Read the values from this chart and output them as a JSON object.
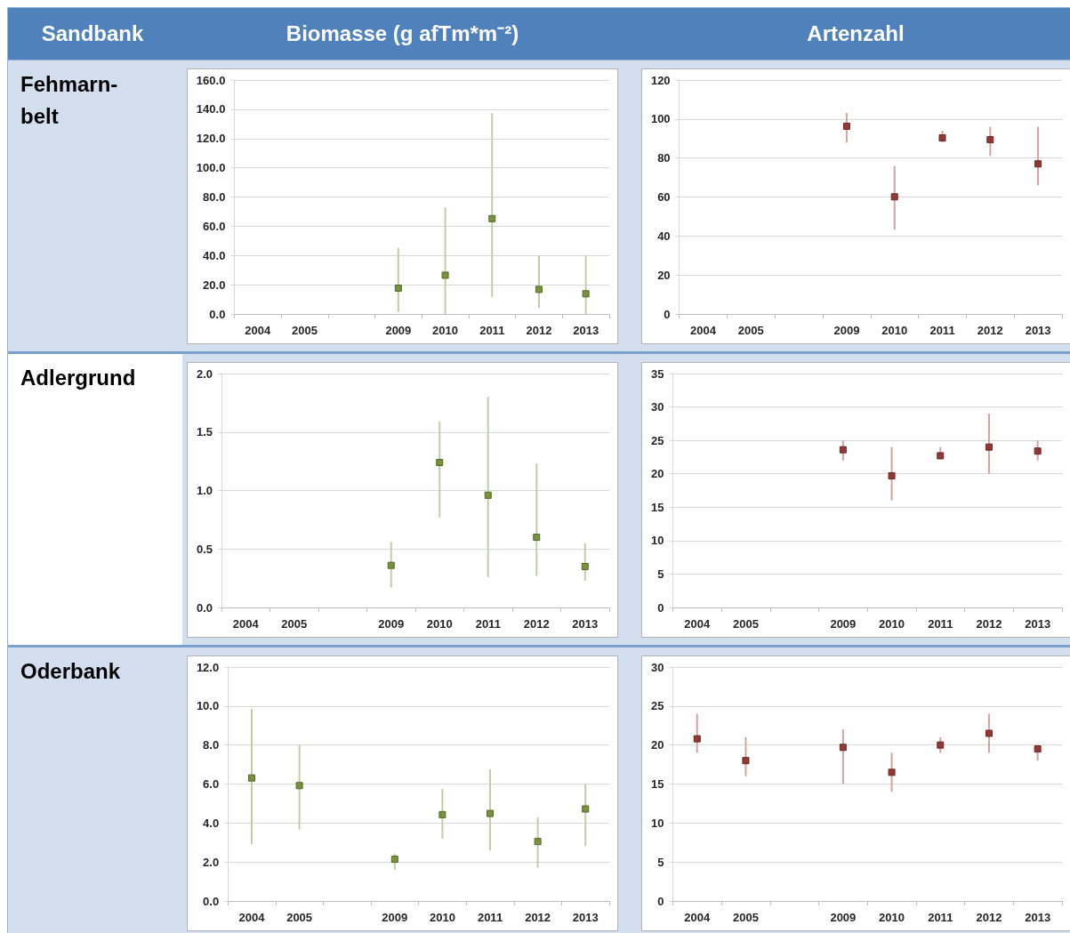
{
  "chart_data": [
    {
      "type": "other",
      "title": "Sandbank",
      "annotations": [
        "Fehmarn-belt",
        "Adlergrund",
        "Oderbank"
      ]
    },
    {
      "type": "scatter",
      "title": "Biomasse (g afTm*m⁻²)",
      "categories": [
        "2004",
        "2005",
        null,
        "2009",
        "2010",
        "2011",
        "2012",
        "2013"
      ],
      "values": [
        null,
        null,
        null,
        17.6,
        26.5,
        65.2,
        16.8,
        13.8
      ],
      "errors": [
        null,
        null,
        null,
        [
          1.4,
          45.2
        ],
        [
          0,
          72.9
        ],
        [
          11.7,
          137.3
        ],
        [
          4.1,
          40.1
        ],
        [
          0,
          39.9
        ]
      ],
      "color": "#77933c",
      "marker": "square",
      "grid": "y",
      "ylim": [
        0,
        160
      ],
      "yticks": [
        {
          "value": 0,
          "label": "0.0"
        },
        {
          "value": 20,
          "label": "20.0"
        },
        {
          "value": 40,
          "label": "40.0"
        },
        {
          "value": 60,
          "label": "60.0"
        },
        {
          "value": 80,
          "label": "80.0"
        },
        {
          "value": 100,
          "label": "100.0"
        },
        {
          "value": 120,
          "label": "120.0"
        },
        {
          "value": 140,
          "label": "140.0"
        },
        {
          "value": 160,
          "label": "160.0"
        }
      ]
    },
    {
      "type": "scatter",
      "title": "Artenzahl",
      "categories": [
        "2004",
        "2005",
        null,
        "2009",
        "2010",
        "2011",
        "2012",
        "2013"
      ],
      "values": [
        null,
        null,
        null,
        96.3,
        60.1,
        90.3,
        89.4,
        77.0
      ],
      "errors": [
        null,
        null,
        null,
        [
          87.9,
          103.1
        ],
        [
          43.2,
          75.9
        ],
        [
          88.1,
          94.0
        ],
        [
          81.1,
          96.0
        ],
        [
          66.0,
          96.0
        ]
      ],
      "color": "#953735",
      "marker": "square",
      "grid": "y",
      "ylim": [
        0,
        120
      ],
      "yticks": [
        0,
        20,
        40,
        60,
        80,
        100,
        120
      ]
    },
    {
      "type": "scatter",
      "categories": [
        "2004",
        "2005",
        null,
        "2009",
        "2010",
        "2011",
        "2012",
        "2013"
      ],
      "values": [
        null,
        null,
        null,
        0.36,
        1.24,
        0.96,
        0.6,
        0.35
      ],
      "errors": [
        null,
        null,
        null,
        [
          0.17,
          0.56
        ],
        [
          0.77,
          1.59
        ],
        [
          0.26,
          1.8
        ],
        [
          0.27,
          1.23
        ],
        [
          0.23,
          0.55
        ]
      ],
      "color": "#77933c",
      "marker": "square",
      "grid": "y",
      "ylim": [
        0,
        2
      ],
      "yticks": [
        {
          "value": 0,
          "label": "0.0"
        },
        {
          "value": 0.5,
          "label": "0.5"
        },
        {
          "value": 1,
          "label": "1.0"
        },
        {
          "value": 1.5,
          "label": "1.5"
        },
        {
          "value": 2,
          "label": "2.0"
        }
      ]
    },
    {
      "type": "scatter",
      "categories": [
        "2004",
        "2005",
        null,
        "2009",
        "2010",
        "2011",
        "2012",
        "2013"
      ],
      "values": [
        null,
        null,
        null,
        23.6,
        19.7,
        22.7,
        24.0,
        23.4
      ],
      "errors": [
        null,
        null,
        null,
        [
          22,
          25
        ],
        [
          16,
          24
        ],
        [
          22.2,
          24
        ],
        [
          20,
          29
        ],
        [
          22,
          25
        ]
      ],
      "color": "#953735",
      "marker": "square",
      "grid": "y",
      "ylim": [
        0,
        35
      ],
      "yticks": [
        0,
        5,
        10,
        15,
        20,
        25,
        30,
        35
      ]
    },
    {
      "type": "scatter",
      "categories": [
        "2004",
        "2005",
        null,
        "2009",
        "2010",
        "2011",
        "2012",
        "2013"
      ],
      "values": [
        6.31,
        5.92,
        null,
        2.14,
        4.43,
        4.49,
        3.05,
        4.72
      ],
      "errors": [
        [
          2.91,
          9.86
        ],
        [
          3.67,
          8.0
        ],
        null,
        [
          1.59,
          2.43
        ],
        [
          3.19,
          5.75
        ],
        [
          2.59,
          6.75
        ],
        [
          1.71,
          4.29
        ],
        [
          2.81,
          5.99
        ]
      ],
      "color": "#77933c",
      "marker": "square",
      "grid": "y",
      "ylim": [
        0,
        12
      ],
      "yticks": [
        {
          "value": 0,
          "label": "0.0"
        },
        {
          "value": 2,
          "label": "2.0"
        },
        {
          "value": 4,
          "label": "4.0"
        },
        {
          "value": 6,
          "label": "6.0"
        },
        {
          "value": 8,
          "label": "8.0"
        },
        {
          "value": 10,
          "label": "10.0"
        },
        {
          "value": 12,
          "label": "12.0"
        }
      ]
    },
    {
      "type": "scatter",
      "categories": [
        "2004",
        "2005",
        null,
        "2009",
        "2010",
        "2011",
        "2012",
        "2013"
      ],
      "values": [
        20.8,
        18.0,
        null,
        19.7,
        16.5,
        20.0,
        21.5,
        19.5
      ],
      "errors": [
        [
          19,
          24
        ],
        [
          16,
          21
        ],
        null,
        [
          15,
          22
        ],
        [
          14,
          19
        ],
        [
          19,
          21
        ],
        [
          19,
          24
        ],
        [
          18,
          20
        ]
      ],
      "color": "#953735",
      "marker": "square",
      "grid": "y",
      "ylim": [
        0,
        30
      ],
      "yticks": [
        0,
        5,
        10,
        15,
        20,
        25,
        30
      ]
    }
  ]
}
